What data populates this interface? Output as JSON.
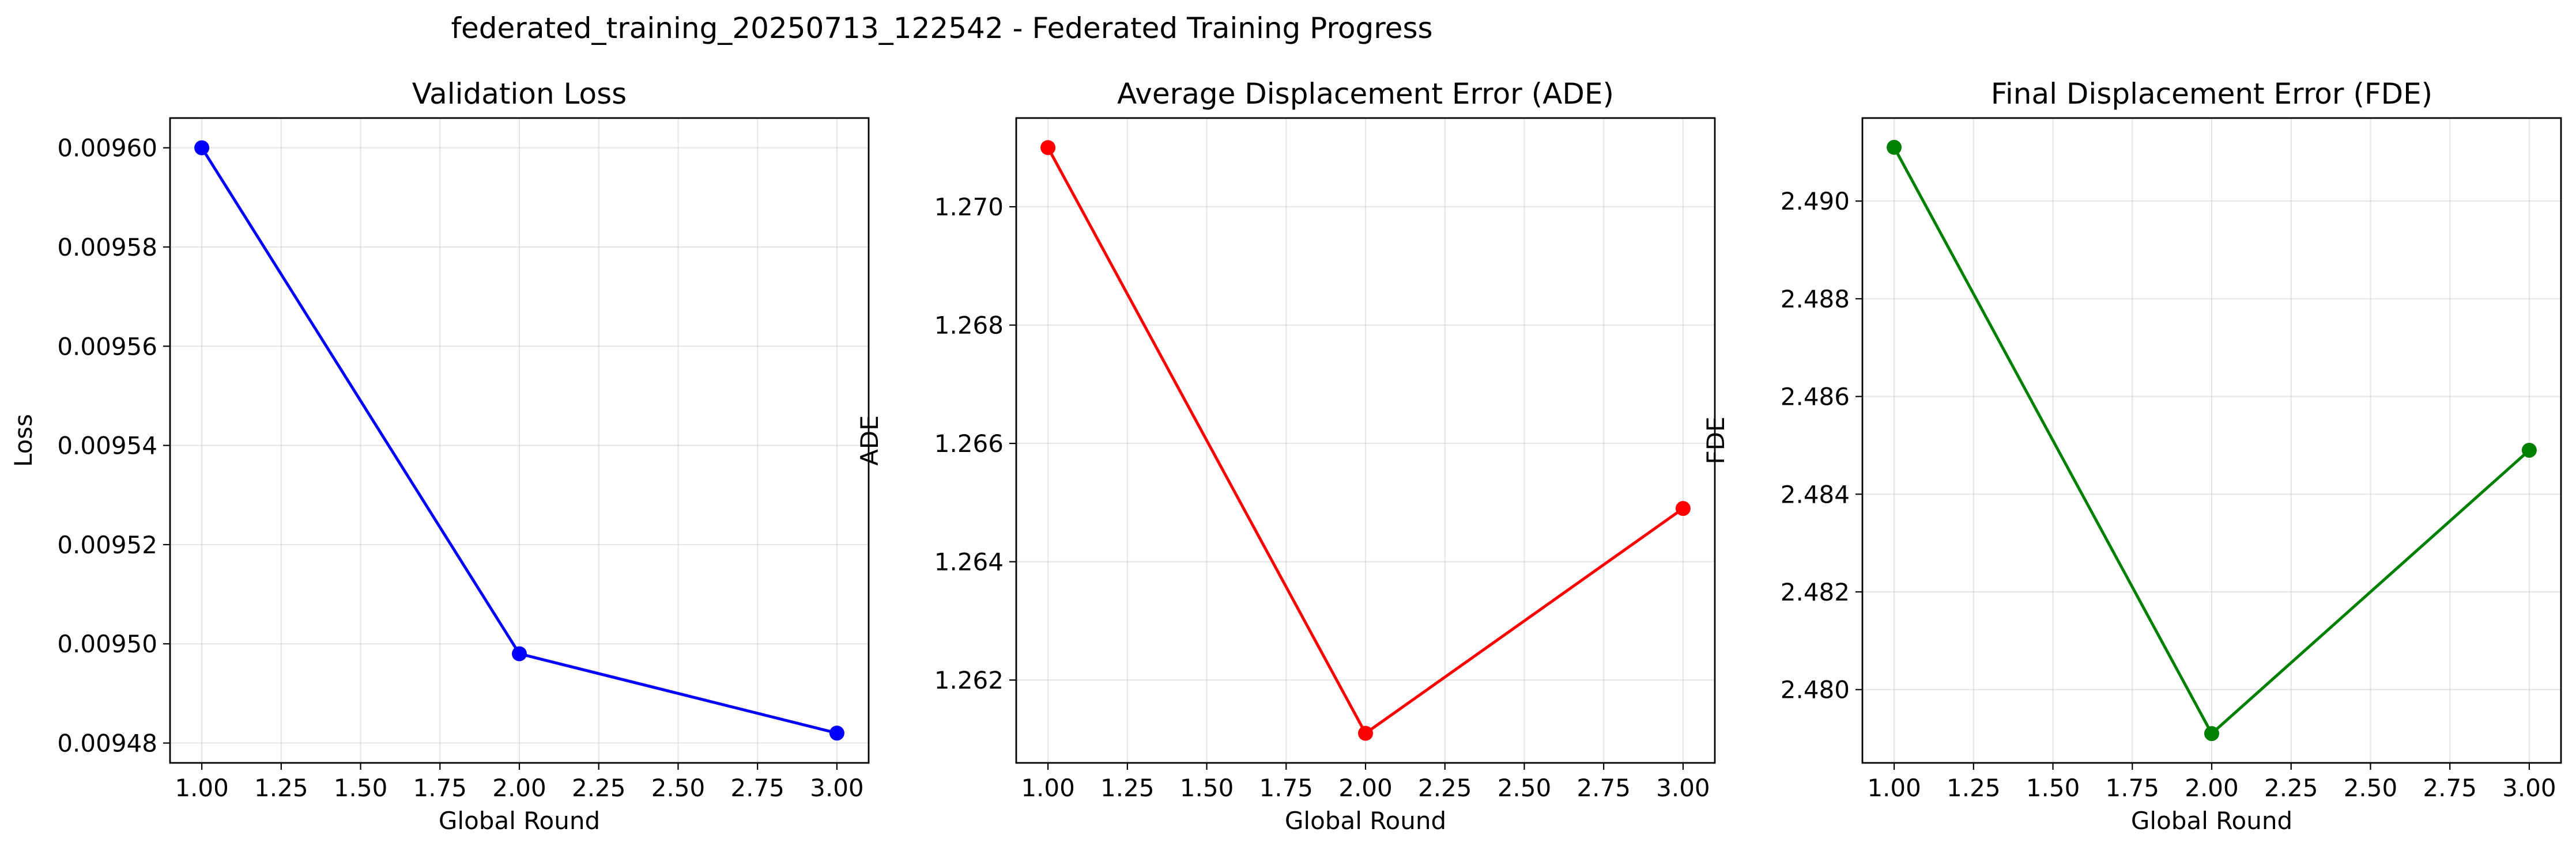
{
  "figure": {
    "suptitle": "federated_training_20250713_122542 - Federated Training Progress"
  },
  "chart_data": [
    {
      "type": "line",
      "title": "Validation Loss",
      "xlabel": "Global Round",
      "ylabel": "Loss",
      "x": [
        1,
        2,
        3
      ],
      "series": [
        {
          "values": [
            0.0096,
            0.009498,
            0.009482
          ],
          "color": "#0000ff"
        }
      ],
      "xlim": [
        0.9,
        3.1
      ],
      "ylim": [
        0.009476,
        0.009606
      ],
      "xticks": [
        1.0,
        1.25,
        1.5,
        1.75,
        2.0,
        2.25,
        2.5,
        2.75,
        3.0
      ],
      "xtick_labels": [
        "1.00",
        "1.25",
        "1.50",
        "1.75",
        "2.00",
        "2.25",
        "2.50",
        "2.75",
        "3.00"
      ],
      "yticks": [
        0.00948,
        0.0095,
        0.00952,
        0.00954,
        0.00956,
        0.00958,
        0.0096
      ],
      "ytick_labels": [
        "0.00948",
        "0.00950",
        "0.00952",
        "0.00954",
        "0.00956",
        "0.00958",
        "0.00960"
      ],
      "grid": true,
      "marker": "circle"
    },
    {
      "type": "line",
      "title": "Average Displacement Error (ADE)",
      "xlabel": "Global Round",
      "ylabel": "ADE",
      "x": [
        1,
        2,
        3
      ],
      "series": [
        {
          "values": [
            1.271,
            1.2611,
            1.2649
          ],
          "color": "#ff0000"
        }
      ],
      "xlim": [
        0.9,
        3.1
      ],
      "ylim": [
        1.2606,
        1.2715
      ],
      "xticks": [
        1.0,
        1.25,
        1.5,
        1.75,
        2.0,
        2.25,
        2.5,
        2.75,
        3.0
      ],
      "xtick_labels": [
        "1.00",
        "1.25",
        "1.50",
        "1.75",
        "2.00",
        "2.25",
        "2.50",
        "2.75",
        "3.00"
      ],
      "yticks": [
        1.262,
        1.264,
        1.266,
        1.268,
        1.27
      ],
      "ytick_labels": [
        "1.262",
        "1.264",
        "1.266",
        "1.268",
        "1.270"
      ],
      "grid": true,
      "marker": "circle"
    },
    {
      "type": "line",
      "title": "Final Displacement Error (FDE)",
      "xlabel": "Global Round",
      "ylabel": "FDE",
      "x": [
        1,
        2,
        3
      ],
      "series": [
        {
          "values": [
            2.4911,
            2.4791,
            2.4849
          ],
          "color": "#008000"
        }
      ],
      "xlim": [
        0.9,
        3.1
      ],
      "ylim": [
        2.4785,
        2.4917
      ],
      "xticks": [
        1.0,
        1.25,
        1.5,
        1.75,
        2.0,
        2.25,
        2.5,
        2.75,
        3.0
      ],
      "xtick_labels": [
        "1.00",
        "1.25",
        "1.50",
        "1.75",
        "2.00",
        "2.25",
        "2.50",
        "2.75",
        "3.00"
      ],
      "yticks": [
        2.48,
        2.482,
        2.484,
        2.486,
        2.488,
        2.49
      ],
      "ytick_labels": [
        "2.480",
        "2.482",
        "2.484",
        "2.486",
        "2.488",
        "2.490"
      ],
      "grid": true,
      "marker": "circle"
    }
  ]
}
